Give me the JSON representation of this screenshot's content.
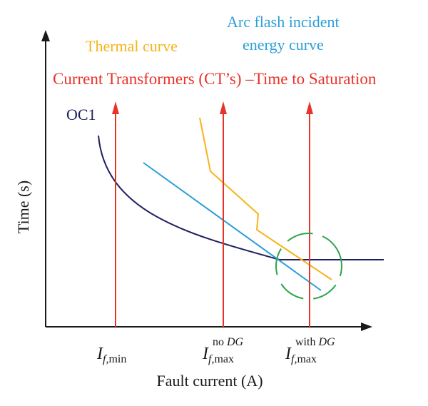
{
  "labels": {
    "thermal": "Thermal curve",
    "arc_line1": "Arc flash incident",
    "arc_line2": "energy curve",
    "ct": "Current Transformers (CT’s) –Time to Saturation",
    "oc1": "OC1",
    "y_axis": "Time (s)",
    "x_axis": "Fault current (A)"
  },
  "ticks": {
    "min": {
      "base": "I",
      "sub": "f,",
      "sub2": "min"
    },
    "max_no_dg": {
      "base": "I",
      "sup": "no ",
      "sup_it": "DG",
      "sub": "f,",
      "sub2": "max"
    },
    "max_with_dg": {
      "base": "I",
      "sup": "with ",
      "sup_it": "DG",
      "sub": "f,",
      "sub2": "max"
    }
  },
  "colors": {
    "axis": "#1a1a1a",
    "thermal": "#f5b41a",
    "arc": "#2a9fd8",
    "ct": "#e8332a",
    "oc1": "#1f2060",
    "circle": "#2da44a"
  }
}
